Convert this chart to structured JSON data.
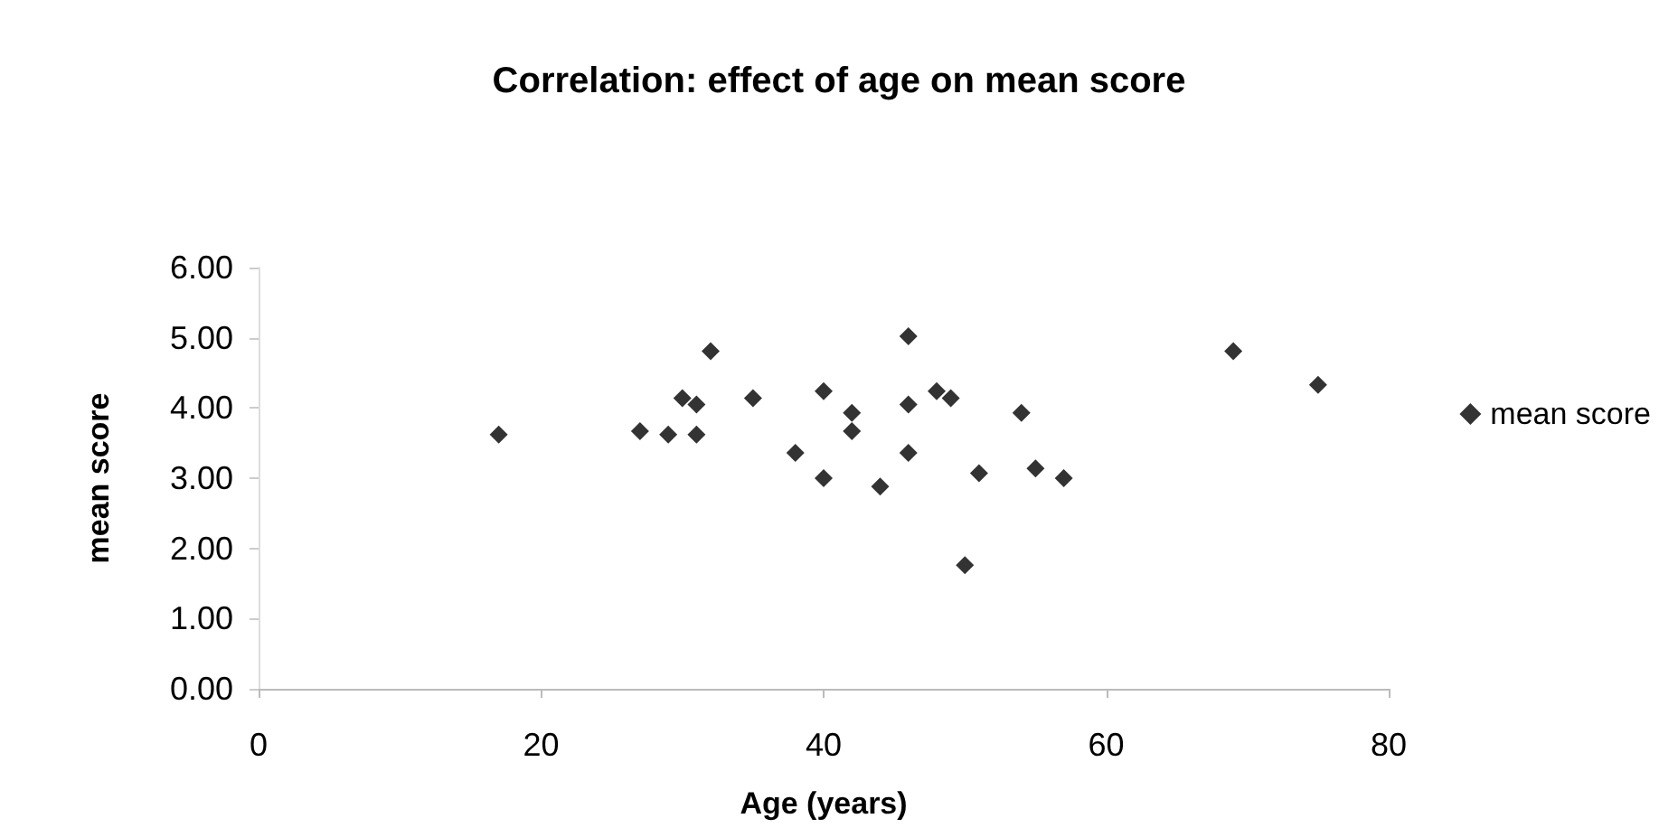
{
  "chart_data": {
    "type": "scatter",
    "title": "Correlation: effect of age on mean score",
    "xlabel": "Age (years)",
    "ylabel": "mean score",
    "xlim": [
      0,
      80
    ],
    "xticks": [
      0,
      20,
      40,
      60,
      80
    ],
    "ylim": [
      0,
      6
    ],
    "yticks": [
      {
        "value": 0,
        "label": "0.00"
      },
      {
        "value": 1,
        "label": "1.00"
      },
      {
        "value": 2,
        "label": "2.00"
      },
      {
        "value": 3,
        "label": "3.00"
      },
      {
        "value": 4,
        "label": "4.00"
      },
      {
        "value": 5,
        "label": "5.00"
      },
      {
        "value": 6,
        "label": "6.00"
      }
    ],
    "grid": false,
    "legend": "right",
    "marker": "diamond",
    "series": [
      {
        "name": "mean score",
        "color": "#000000",
        "x": [
          17,
          27,
          29,
          30,
          31,
          31,
          32,
          35,
          38,
          40,
          40,
          42,
          42,
          44,
          46,
          46,
          46,
          48,
          49,
          50,
          51,
          54,
          55,
          57,
          69,
          75
        ],
        "values": [
          3.62,
          3.67,
          3.62,
          4.14,
          4.05,
          3.62,
          4.81,
          4.14,
          3.36,
          4.24,
          3.0,
          3.93,
          3.67,
          2.88,
          5.02,
          4.05,
          3.36,
          4.24,
          4.14,
          1.76,
          3.07,
          3.93,
          3.14,
          3.0,
          4.81,
          4.33
        ]
      }
    ]
  }
}
